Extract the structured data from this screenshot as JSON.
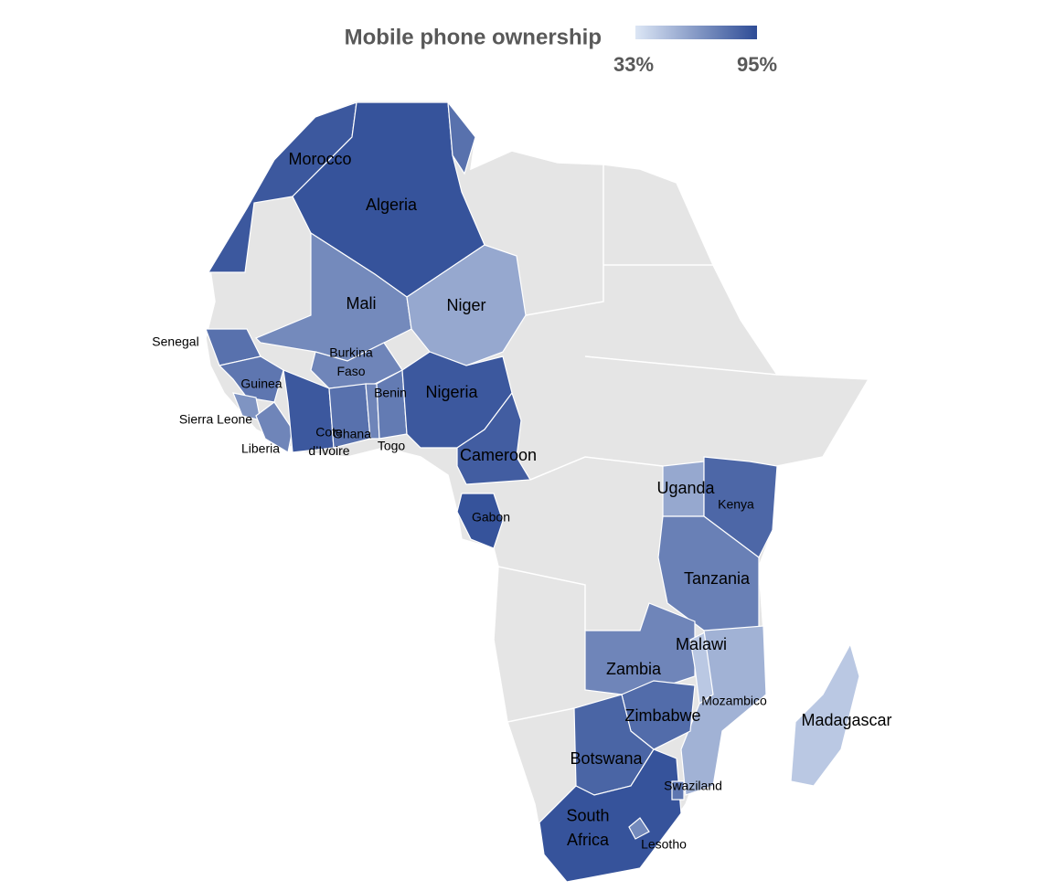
{
  "chart_data": {
    "type": "choropleth",
    "title": "Mobile phone ownership",
    "scale": [
      {
        "value": 33,
        "label": "33%"
      },
      {
        "value": 95,
        "label": "95%"
      }
    ],
    "colors": [
      "#dce6f5",
      "#2e4c96"
    ],
    "countries": [
      {
        "label": [
          "Morocco"
        ],
        "value": 90
      },
      {
        "label": [
          "Algeria"
        ],
        "value": 92
      },
      {
        "label": null,
        "value": 80
      },
      {
        "label": [
          "Mali"
        ],
        "value": 70
      },
      {
        "label": [
          "Niger"
        ],
        "value": 58
      },
      {
        "label": [
          "Senegal"
        ],
        "value": 80
      },
      {
        "label": [
          "Guinea"
        ],
        "value": 78
      },
      {
        "label": [
          "Sierra Leone"
        ],
        "value": 66
      },
      {
        "label": [
          "Liberia"
        ],
        "value": 72
      },
      {
        "label": [
          "Burkina",
          "Faso"
        ],
        "value": 72
      },
      {
        "label": [
          "Cote",
          "d’Ivoire"
        ],
        "value": 90
      },
      {
        "label": [
          "Ghana"
        ],
        "value": 80
      },
      {
        "label": [
          "Togo"
        ],
        "value": 72
      },
      {
        "label": [
          "Benin"
        ],
        "value": 76
      },
      {
        "label": [
          "Nigeria"
        ],
        "value": 90
      },
      {
        "label": [
          "Cameroon"
        ],
        "value": 88
      },
      {
        "label": [
          "Gabon"
        ],
        "value": 92
      },
      {
        "label": [
          "Uganda"
        ],
        "value": 58
      },
      {
        "label": [
          "Kenya"
        ],
        "value": 84
      },
      {
        "label": [
          "Tanzania"
        ],
        "value": 74
      },
      {
        "label": [
          "Zambia"
        ],
        "value": 72
      },
      {
        "label": [
          "Malawi"
        ],
        "value": 45
      },
      {
        "label": [
          "Mozambico"
        ],
        "value": 54
      },
      {
        "label": [
          "Zimbabwe"
        ],
        "value": 82
      },
      {
        "label": [
          "Botswana"
        ],
        "value": 85
      },
      {
        "label": [
          "South",
          "Africa"
        ],
        "value": 92
      },
      {
        "label": [
          "Swaziland"
        ],
        "value": 78
      },
      {
        "label": [
          "Lesotho"
        ],
        "value": 70
      },
      {
        "label": [
          "Madagascar"
        ],
        "value": 45
      }
    ]
  }
}
